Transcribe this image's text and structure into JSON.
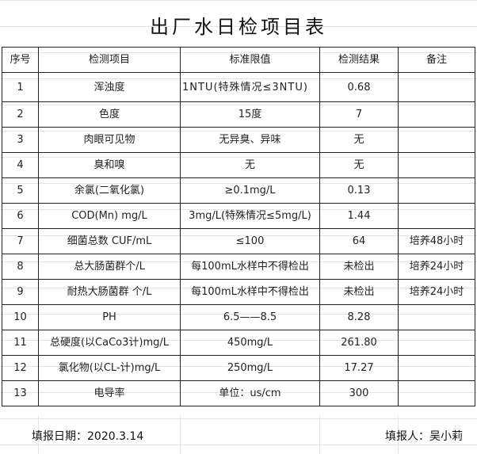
{
  "title": "出厂水日检项目表",
  "headers": [
    "序号",
    "检测项目",
    "标准限值",
    "检测结果",
    "备注"
  ],
  "rows": [
    [
      "1",
      "浑浊度",
      "1NTU(特殊情况≤3NTU)",
      "0.68",
      ""
    ],
    [
      "2",
      "色度",
      "15度",
      "7",
      ""
    ],
    [
      "3",
      "肉眼可见物",
      "无异臭、异味",
      "无",
      ""
    ],
    [
      "4",
      "臭和嗅",
      "无",
      "无",
      ""
    ],
    [
      "5",
      "余氯(二氧化氯)",
      "≥0.1mg/L",
      "0.13",
      ""
    ],
    [
      "6",
      "COD(Mn)  mg/L",
      "3mg/L(特殊情况≤5mg/L)",
      "1.44",
      ""
    ],
    [
      "7",
      "细菌总数 CUF/mL",
      "≤100",
      "64",
      "培养48小时"
    ],
    [
      "8",
      "总大肠菌群个/L",
      "每100mL水样中不得检出",
      "未检出",
      "培养24小时"
    ],
    [
      "9",
      "耐热大肠菌群 个/L",
      "每100mL水样中不得检出",
      "未检出",
      "培养24小时"
    ],
    [
      "10",
      "PH",
      "6.5——8.5",
      "8.28",
      ""
    ],
    [
      "11",
      "总硬度(以CaCo3计)mg/L",
      "450mg/L",
      "261.80",
      ""
    ],
    [
      "12",
      "氯化物(以CL-计)mg/L",
      "250mg/L",
      "17.27",
      ""
    ],
    [
      "13",
      "电导率",
      "单位：us/cm",
      "300",
      ""
    ]
  ],
  "footer": {
    "date": "填报日期：2020.3.14",
    "reporter": "填报人：吴小莉"
  }
}
